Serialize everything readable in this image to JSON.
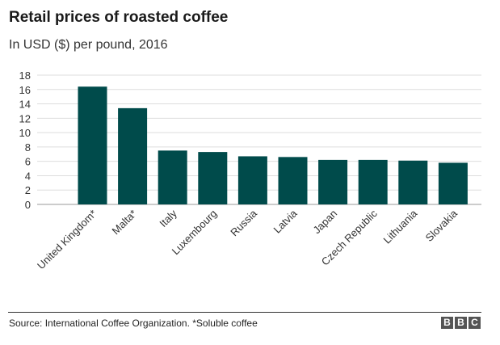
{
  "chart_data": {
    "type": "bar",
    "title": "Retail prices of roasted coffee",
    "subtitle": "In USD ($) per pound, 2016",
    "categories": [
      "United Kingdom*",
      "Malta*",
      "Italy",
      "Luxembourg",
      "Russia",
      "Latvia",
      "Japan",
      "Czech Republic",
      "Lithuania",
      "Slovakia"
    ],
    "values": [
      16.4,
      13.4,
      7.5,
      7.3,
      6.7,
      6.6,
      6.2,
      6.2,
      6.1,
      5.8
    ],
    "yticks": [
      0,
      2,
      4,
      6,
      8,
      10,
      12,
      14,
      16,
      18
    ],
    "ylim": [
      0,
      18
    ],
    "xlabel": "",
    "ylabel": "",
    "grid": true,
    "bar_color": "#004b4b",
    "source": "Source: International Coffee Organization. *Soluble coffee"
  },
  "logo": {
    "letters": [
      "B",
      "B",
      "C"
    ]
  }
}
